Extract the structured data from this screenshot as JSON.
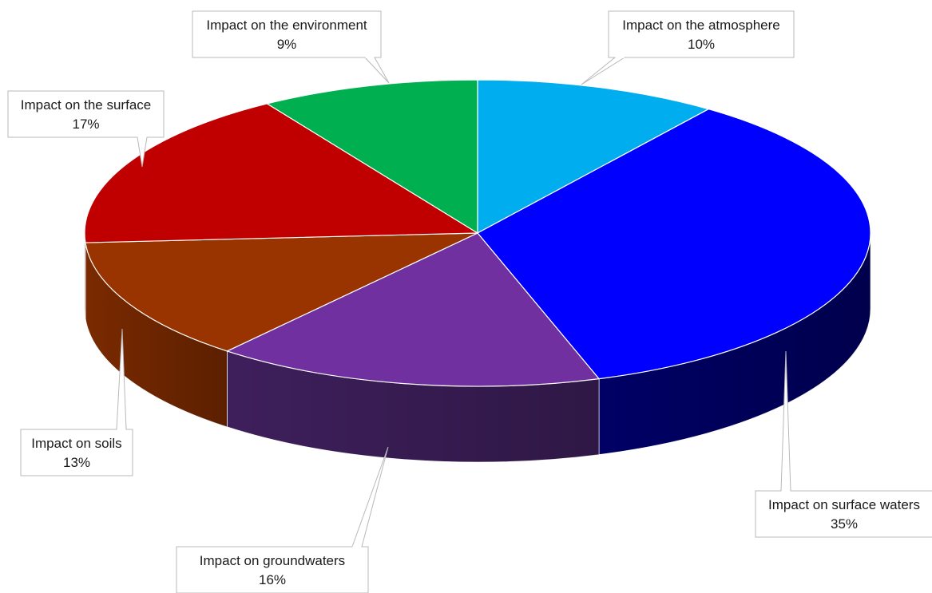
{
  "chart_data": {
    "type": "pie",
    "style": "3d",
    "categories": [
      "Impact on the atmosphere",
      "Impact on surface waters",
      "Impact on groundwaters",
      "Impact on soils",
      "Impact on the surface",
      "Impact on the environment"
    ],
    "values": [
      10,
      35,
      16,
      13,
      17,
      9
    ],
    "value_labels": [
      "10%",
      "35%",
      "16%",
      "13%",
      "17%",
      "9%"
    ],
    "colors": [
      "#00AEEF",
      "#0000FF",
      "#7030A0",
      "#993300",
      "#C00000",
      "#00B050"
    ],
    "side_colors": [
      "#0077A8",
      "#000066",
      "#3E1F5C",
      "#7A2A00",
      "#8A0000",
      "#007A38"
    ],
    "legend": "none",
    "title": ""
  }
}
